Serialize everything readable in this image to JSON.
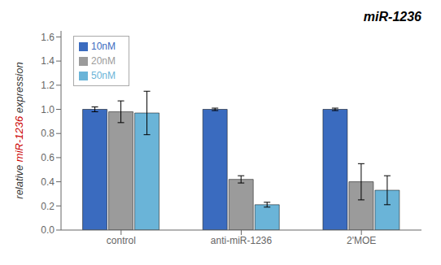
{
  "chart_data": {
    "type": "bar",
    "title": "miR-1236",
    "ylabel": "relative miR-1236 expression",
    "ylabel_highlight": {
      "text": "miR-1236",
      "color": "#cc0000"
    },
    "categories": [
      "control",
      "anti-miR-1236",
      "2'MOE"
    ],
    "series": [
      {
        "name": "10nM",
        "color": "#3a6bbf",
        "values": [
          1.0,
          1.0,
          1.0
        ],
        "errors": [
          0.02,
          0.01,
          0.01
        ]
      },
      {
        "name": "20nM",
        "color": "#9b9b9b",
        "values": [
          0.98,
          0.42,
          0.4
        ],
        "errors": [
          0.09,
          0.03,
          0.15
        ]
      },
      {
        "name": "50nM",
        "color": "#6ab4d8",
        "values": [
          0.97,
          0.21,
          0.33
        ],
        "errors": [
          0.18,
          0.02,
          0.12
        ]
      }
    ],
    "ylim": [
      0.0,
      1.65
    ],
    "yticks": [
      {
        "value": 0.0,
        "label": "0.0"
      },
      0.2,
      0.4,
      0.6,
      0.8,
      {
        "value": 1.0,
        "label": "1.0"
      },
      1.2,
      1.4,
      1.6
    ],
    "grid": false,
    "legend": "upper left"
  }
}
